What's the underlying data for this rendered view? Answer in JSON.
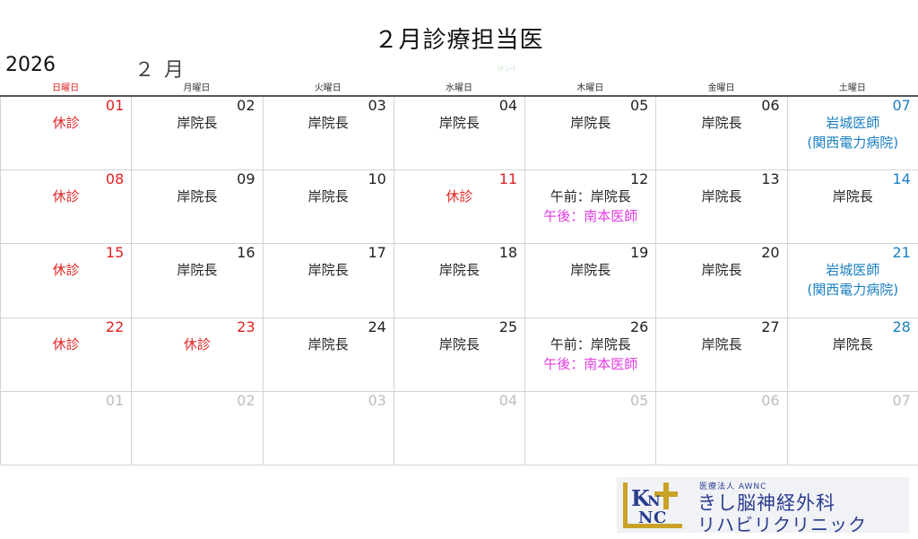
{
  "header": {
    "title": "２月診療担当医",
    "year": "2026",
    "month": "２ 月",
    "faint_mark": "(ｸﾞﾚｰ)"
  },
  "weekdays": [
    "日曜日",
    "月曜日",
    "火曜日",
    "水曜日",
    "木曜日",
    "金曜日",
    "土曜日"
  ],
  "weeks": [
    [
      {
        "date": "01",
        "date_color": "red",
        "lines": [
          {
            "text": "休診",
            "color": "red"
          }
        ]
      },
      {
        "date": "02",
        "date_color": "normal",
        "lines": [
          {
            "text": "岸院長",
            "color": "normal"
          }
        ]
      },
      {
        "date": "03",
        "date_color": "normal",
        "lines": [
          {
            "text": "岸院長",
            "color": "normal"
          }
        ]
      },
      {
        "date": "04",
        "date_color": "normal",
        "lines": [
          {
            "text": "岸院長",
            "color": "normal"
          }
        ]
      },
      {
        "date": "05",
        "date_color": "normal",
        "lines": [
          {
            "text": "岸院長",
            "color": "normal"
          }
        ]
      },
      {
        "date": "06",
        "date_color": "normal",
        "lines": [
          {
            "text": "岸院長",
            "color": "normal"
          }
        ]
      },
      {
        "date": "07",
        "date_color": "blue",
        "lines": [
          {
            "text": "岩城医師",
            "color": "blue"
          },
          {
            "text": "(関西電力病院)",
            "color": "blue"
          }
        ]
      }
    ],
    [
      {
        "date": "08",
        "date_color": "red",
        "lines": [
          {
            "text": "休診",
            "color": "red"
          }
        ]
      },
      {
        "date": "09",
        "date_color": "normal",
        "lines": [
          {
            "text": "岸院長",
            "color": "normal"
          }
        ]
      },
      {
        "date": "10",
        "date_color": "normal",
        "lines": [
          {
            "text": "岸院長",
            "color": "normal"
          }
        ]
      },
      {
        "date": "11",
        "date_color": "red",
        "lines": [
          {
            "text": "休診",
            "color": "red"
          }
        ]
      },
      {
        "date": "12",
        "date_color": "normal",
        "lines": [
          {
            "text": "午前：岸院長",
            "color": "normal"
          },
          {
            "text": "午後：南本医師",
            "color": "pink"
          }
        ]
      },
      {
        "date": "13",
        "date_color": "normal",
        "lines": [
          {
            "text": "岸院長",
            "color": "normal"
          }
        ]
      },
      {
        "date": "14",
        "date_color": "blue",
        "lines": [
          {
            "text": "岸院長",
            "color": "normal"
          }
        ]
      }
    ],
    [
      {
        "date": "15",
        "date_color": "red",
        "lines": [
          {
            "text": "休診",
            "color": "red"
          }
        ]
      },
      {
        "date": "16",
        "date_color": "normal",
        "lines": [
          {
            "text": "岸院長",
            "color": "normal"
          }
        ]
      },
      {
        "date": "17",
        "date_color": "normal",
        "lines": [
          {
            "text": "岸院長",
            "color": "normal"
          }
        ]
      },
      {
        "date": "18",
        "date_color": "normal",
        "lines": [
          {
            "text": "岸院長",
            "color": "normal"
          }
        ]
      },
      {
        "date": "19",
        "date_color": "normal",
        "lines": [
          {
            "text": "岸院長",
            "color": "normal"
          }
        ]
      },
      {
        "date": "20",
        "date_color": "normal",
        "lines": [
          {
            "text": "岸院長",
            "color": "normal"
          }
        ]
      },
      {
        "date": "21",
        "date_color": "blue",
        "lines": [
          {
            "text": "岩城医師",
            "color": "blue"
          },
          {
            "text": "(関西電力病院)",
            "color": "blue"
          }
        ]
      }
    ],
    [
      {
        "date": "22",
        "date_color": "red",
        "lines": [
          {
            "text": "休診",
            "color": "red"
          }
        ]
      },
      {
        "date": "23",
        "date_color": "red",
        "lines": [
          {
            "text": "休診",
            "color": "red"
          }
        ]
      },
      {
        "date": "24",
        "date_color": "normal",
        "lines": [
          {
            "text": "岸院長",
            "color": "normal"
          }
        ]
      },
      {
        "date": "25",
        "date_color": "normal",
        "lines": [
          {
            "text": "岸院長",
            "color": "normal"
          }
        ]
      },
      {
        "date": "26",
        "date_color": "normal",
        "lines": [
          {
            "text": "午前：岸院長",
            "color": "normal"
          },
          {
            "text": "午後：南本医師",
            "color": "pink"
          }
        ]
      },
      {
        "date": "27",
        "date_color": "normal",
        "lines": [
          {
            "text": "岸院長",
            "color": "normal"
          }
        ]
      },
      {
        "date": "28",
        "date_color": "blue",
        "lines": [
          {
            "text": "岸院長",
            "color": "normal"
          }
        ]
      }
    ],
    [
      {
        "date": "01",
        "date_color": "grey",
        "lines": []
      },
      {
        "date": "02",
        "date_color": "grey",
        "lines": []
      },
      {
        "date": "03",
        "date_color": "grey",
        "lines": []
      },
      {
        "date": "04",
        "date_color": "grey",
        "lines": []
      },
      {
        "date": "05",
        "date_color": "grey",
        "lines": []
      },
      {
        "date": "06",
        "date_color": "grey",
        "lines": []
      },
      {
        "date": "07",
        "date_color": "grey",
        "lines": []
      }
    ]
  ],
  "logo": {
    "small_text": "医療法人 AWNC",
    "line1": "きし脳神経外科",
    "line2": "リハビリクリニック",
    "mark_letters": [
      "K",
      "N",
      "C",
      "L"
    ]
  },
  "colors": {
    "red": "#e02020",
    "blue": "#1a7fc1",
    "pink": "#e03ce0",
    "grey": "#bdbdbd",
    "logo_navy": "#2a3d8f",
    "logo_gold": "#c9a227"
  }
}
